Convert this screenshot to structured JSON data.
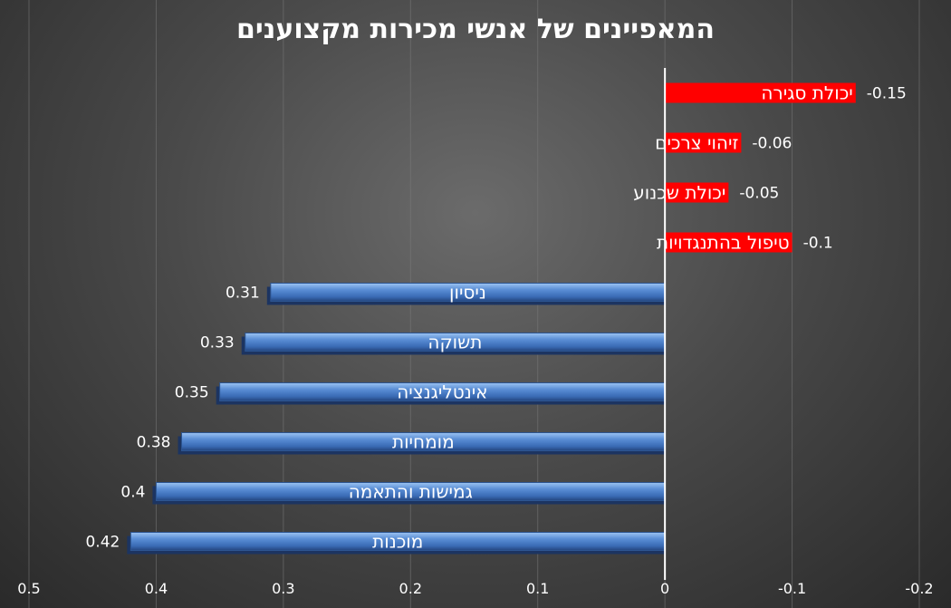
{
  "chart_data": {
    "type": "bar",
    "orientation": "horizontal",
    "title": "המאפיינים של אנשי מכירות מקצוענים",
    "xlabel": "",
    "ylabel": "",
    "x_reversed": true,
    "xlim": [
      -0.2,
      0.5
    ],
    "xticks": [
      0.5,
      0.4,
      0.3,
      0.2,
      0.1,
      0,
      -0.1,
      -0.2
    ],
    "xtick_labels": [
      "0.5",
      "0.4",
      "0.3",
      "0.2",
      "0.1",
      "0",
      "-0.1",
      "-0.2"
    ],
    "grid": true,
    "legend": "none",
    "colors": {
      "positive": "#4a7ec8",
      "negative": "#ff0000",
      "axis": "#ffffff"
    },
    "categories": [
      "יכולת סגירה",
      "זיהוי צרכים",
      "יכולת שכנוע",
      "טיפול בהתנגדויות",
      "ניסיון",
      "תשוקה",
      "אינטליגנציה",
      "מומחיות",
      "גמישות והתאמה",
      "מוכנות"
    ],
    "values": [
      -0.15,
      -0.06,
      -0.05,
      -0.1,
      0.31,
      0.33,
      0.35,
      0.38,
      0.4,
      0.42
    ],
    "value_labels": [
      "-0.15",
      "-0.06",
      "-0.05",
      "-0.1",
      "0.31",
      "0.33",
      "0.35",
      "0.38",
      "0.4",
      "0.42"
    ]
  }
}
